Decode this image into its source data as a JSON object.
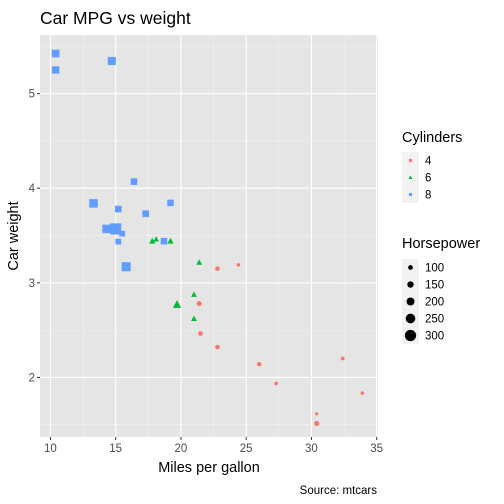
{
  "chart_data": {
    "type": "scatter",
    "title": "Car MPG vs weight",
    "xlabel": "Miles per gallon",
    "ylabel": "Car weight",
    "caption": "Source: mtcars",
    "xlim": [
      9.2,
      35.1
    ],
    "ylim": [
      1.37,
      5.62
    ],
    "x_ticks": [
      10,
      15,
      20,
      25,
      30,
      35
    ],
    "y_ticks": [
      2,
      3,
      4,
      5
    ],
    "grid": true,
    "background": "#e5e5e5",
    "legends": {
      "shape_color": {
        "title": "Cylinders",
        "entries": [
          {
            "label": "4",
            "color": "#f8766d",
            "shape": "circle"
          },
          {
            "label": "6",
            "color": "#00ba38",
            "shape": "triangle"
          },
          {
            "label": "8",
            "color": "#619cff",
            "shape": "square"
          }
        ]
      },
      "size": {
        "title": "Horsepower",
        "entries": [
          {
            "label": "100",
            "value": 100
          },
          {
            "label": "150",
            "value": 150
          },
          {
            "label": "200",
            "value": 200
          },
          {
            "label": "250",
            "value": 250
          },
          {
            "label": "300",
            "value": 300
          }
        ]
      }
    },
    "size_range": [
      52,
      335
    ],
    "series": [
      {
        "name": "4",
        "shape": "circle",
        "color": "#f8766d",
        "points": [
          {
            "x": 22.8,
            "y": 2.32,
            "hp": 93
          },
          {
            "x": 24.4,
            "y": 3.19,
            "hp": 62
          },
          {
            "x": 22.8,
            "y": 3.15,
            "hp": 95
          },
          {
            "x": 32.4,
            "y": 2.2,
            "hp": 66
          },
          {
            "x": 30.4,
            "y": 1.615,
            "hp": 52
          },
          {
            "x": 33.9,
            "y": 1.835,
            "hp": 65
          },
          {
            "x": 21.5,
            "y": 2.465,
            "hp": 97
          },
          {
            "x": 27.3,
            "y": 1.935,
            "hp": 66
          },
          {
            "x": 26.0,
            "y": 2.14,
            "hp": 91
          },
          {
            "x": 30.4,
            "y": 1.513,
            "hp": 113
          },
          {
            "x": 21.4,
            "y": 2.78,
            "hp": 109
          }
        ]
      },
      {
        "name": "6",
        "shape": "triangle",
        "color": "#00ba38",
        "points": [
          {
            "x": 21.0,
            "y": 2.62,
            "hp": 110
          },
          {
            "x": 21.0,
            "y": 2.875,
            "hp": 110
          },
          {
            "x": 21.4,
            "y": 3.215,
            "hp": 110
          },
          {
            "x": 18.1,
            "y": 3.46,
            "hp": 105
          },
          {
            "x": 19.2,
            "y": 3.44,
            "hp": 123
          },
          {
            "x": 17.8,
            "y": 3.44,
            "hp": 123
          },
          {
            "x": 19.7,
            "y": 2.77,
            "hp": 175
          }
        ]
      },
      {
        "name": "8",
        "shape": "square",
        "color": "#619cff",
        "points": [
          {
            "x": 18.7,
            "y": 3.44,
            "hp": 175
          },
          {
            "x": 14.3,
            "y": 3.57,
            "hp": 245
          },
          {
            "x": 16.4,
            "y": 4.07,
            "hp": 180
          },
          {
            "x": 17.3,
            "y": 3.73,
            "hp": 180
          },
          {
            "x": 15.2,
            "y": 3.78,
            "hp": 180
          },
          {
            "x": 10.4,
            "y": 5.25,
            "hp": 205
          },
          {
            "x": 10.4,
            "y": 5.424,
            "hp": 215
          },
          {
            "x": 14.7,
            "y": 5.345,
            "hp": 230
          },
          {
            "x": 15.5,
            "y": 3.52,
            "hp": 150
          },
          {
            "x": 15.2,
            "y": 3.435,
            "hp": 150
          },
          {
            "x": 13.3,
            "y": 3.84,
            "hp": 245
          },
          {
            "x": 19.2,
            "y": 3.845,
            "hp": 175
          },
          {
            "x": 15.8,
            "y": 3.17,
            "hp": 264
          },
          {
            "x": 15.0,
            "y": 3.57,
            "hp": 335
          }
        ]
      }
    ]
  }
}
